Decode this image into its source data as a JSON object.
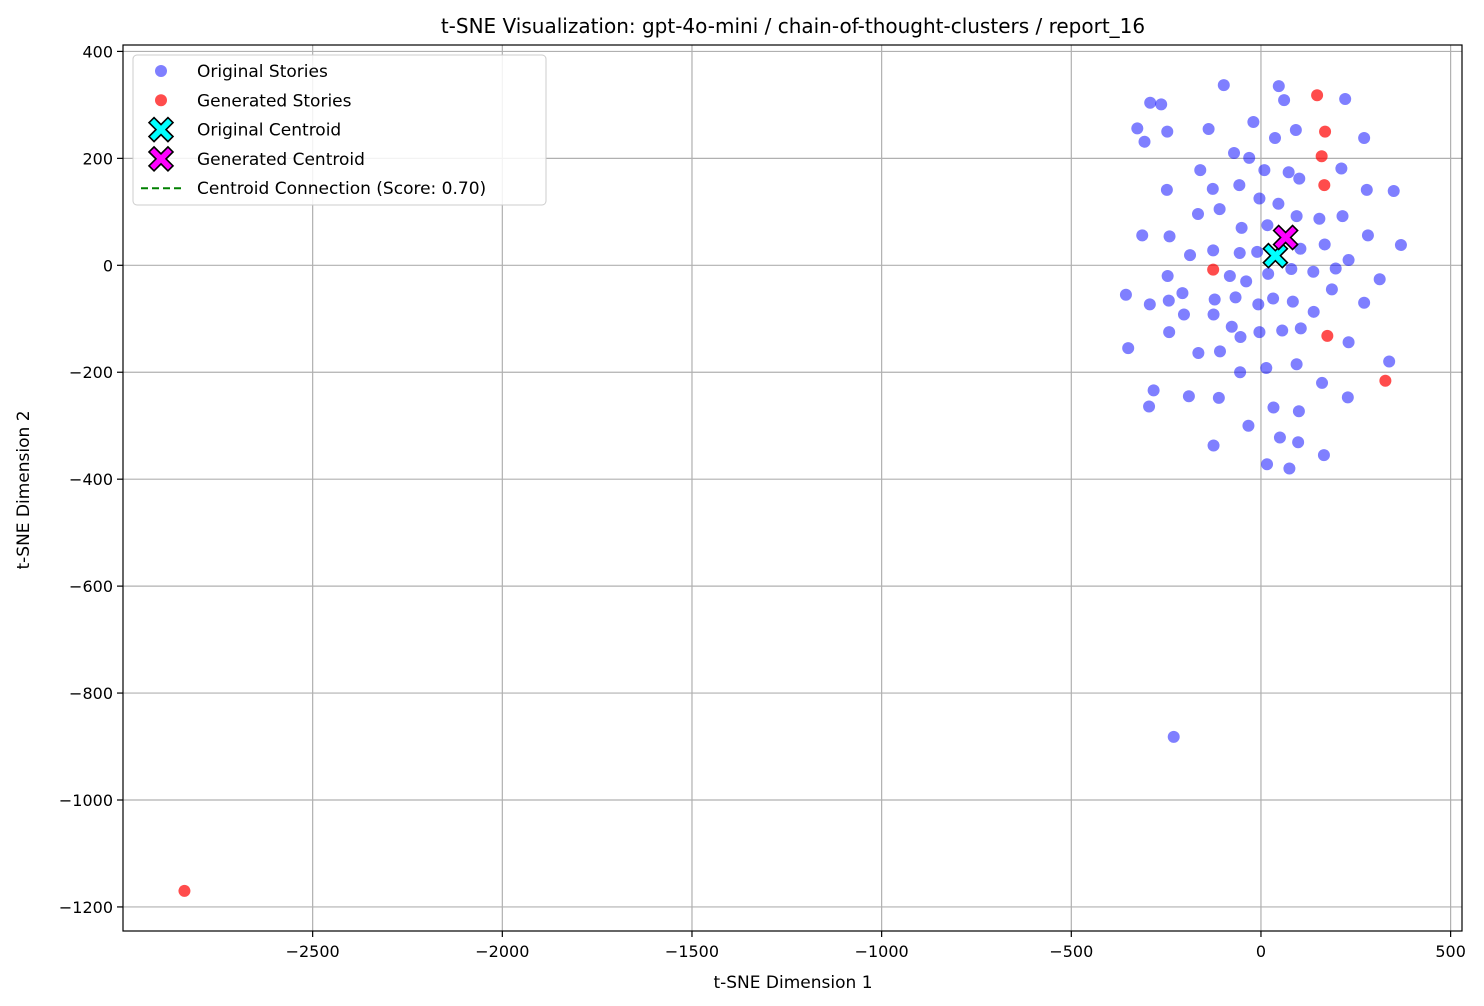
{
  "chart_data": {
    "type": "scatter",
    "title": "t-SNE Visualization: gpt-4o-mini / chain-of-thought-clusters / report_16",
    "xlabel": "t-SNE Dimension 1",
    "ylabel": "t-SNE Dimension 2",
    "xlim": [
      -3000,
      530
    ],
    "ylim": [
      -1245,
      412
    ],
    "xticks": [
      -2500,
      -2000,
      -1500,
      -1000,
      -500,
      0,
      500
    ],
    "yticks": [
      -1200,
      -1000,
      -800,
      -600,
      -400,
      -200,
      0,
      200,
      400
    ],
    "xtick_labels": [
      "−2500",
      "−2000",
      "−1500",
      "−1000",
      "−500",
      "0",
      "500"
    ],
    "ytick_labels": [
      "−1200",
      "−1000",
      "−800",
      "−600",
      "−400",
      "−200",
      "0",
      "200",
      "400"
    ],
    "grid": true,
    "legend_position": "top-left",
    "series": [
      {
        "name": "Original Stories",
        "marker": "circle",
        "color": "#0000ff",
        "points": [
          [
            -98,
            337
          ],
          [
            47,
            335
          ],
          [
            61,
            309
          ],
          [
            222,
            311
          ],
          [
            -292,
            304
          ],
          [
            -263,
            301
          ],
          [
            -20,
            268
          ],
          [
            -326,
            256
          ],
          [
            -138,
            255
          ],
          [
            -247,
            250
          ],
          [
            92,
            253
          ],
          [
            37,
            238
          ],
          [
            272,
            238
          ],
          [
            -307,
            231
          ],
          [
            -71,
            210
          ],
          [
            -31,
            201
          ],
          [
            9,
            178
          ],
          [
            73,
            174
          ],
          [
            -160,
            178
          ],
          [
            212,
            181
          ],
          [
            101,
            162
          ],
          [
            -57,
            150
          ],
          [
            -127,
            143
          ],
          [
            -248,
            141
          ],
          [
            279,
            141
          ],
          [
            350,
            139
          ],
          [
            -4,
            125
          ],
          [
            46,
            115
          ],
          [
            -109,
            105
          ],
          [
            -166,
            96
          ],
          [
            94,
            92
          ],
          [
            154,
            87
          ],
          [
            215,
            92
          ],
          [
            17,
            75
          ],
          [
            -51,
            70
          ],
          [
            -313,
            56
          ],
          [
            -241,
            54
          ],
          [
            282,
            56
          ],
          [
            168,
            39
          ],
          [
            369,
            38
          ],
          [
            -126,
            28
          ],
          [
            -10,
            25
          ],
          [
            104,
            31
          ],
          [
            -187,
            19
          ],
          [
            -56,
            23
          ],
          [
            231,
            10
          ],
          [
            80,
            -7
          ],
          [
            19,
            -16
          ],
          [
            138,
            -12
          ],
          [
            197,
            -6
          ],
          [
            -246,
            -20
          ],
          [
            -82,
            -20
          ],
          [
            -39,
            -30
          ],
          [
            313,
            -26
          ],
          [
            -207,
            -52
          ],
          [
            -356,
            -55
          ],
          [
            187,
            -45
          ],
          [
            -243,
            -66
          ],
          [
            -122,
            -64
          ],
          [
            -67,
            -60
          ],
          [
            32,
            -62
          ],
          [
            -293,
            -73
          ],
          [
            -7,
            -73
          ],
          [
            84,
            -68
          ],
          [
            272,
            -70
          ],
          [
            139,
            -87
          ],
          [
            -203,
            -92
          ],
          [
            -125,
            -92
          ],
          [
            -77,
            -115
          ],
          [
            105,
            -118
          ],
          [
            -242,
            -125
          ],
          [
            -4,
            -125
          ],
          [
            56,
            -122
          ],
          [
            -54,
            -134
          ],
          [
            231,
            -144
          ],
          [
            -350,
            -155
          ],
          [
            -165,
            -164
          ],
          [
            -108,
            -161
          ],
          [
            338,
            -180
          ],
          [
            94,
            -185
          ],
          [
            14,
            -192
          ],
          [
            -55,
            -200
          ],
          [
            161,
            -220
          ],
          [
            -283,
            -234
          ],
          [
            -190,
            -245
          ],
          [
            -111,
            -248
          ],
          [
            229,
            -247
          ],
          [
            -295,
            -264
          ],
          [
            33,
            -266
          ],
          [
            100,
            -273
          ],
          [
            -33,
            -300
          ],
          [
            50,
            -322
          ],
          [
            98,
            -331
          ],
          [
            -125,
            -337
          ],
          [
            166,
            -355
          ],
          [
            16,
            -372
          ],
          [
            75,
            -380
          ],
          [
            -230,
            -882
          ]
        ]
      },
      {
        "name": "Generated Stories",
        "marker": "circle",
        "color": "#ff0000",
        "points": [
          [
            148,
            318
          ],
          [
            169,
            250
          ],
          [
            160,
            204
          ],
          [
            167,
            150
          ],
          [
            -126,
            -8
          ],
          [
            175,
            -132
          ],
          [
            328,
            -216
          ],
          [
            -2838,
            -1170
          ]
        ]
      },
      {
        "name": "Original Centroid",
        "marker": "x",
        "color": "#00ffff",
        "points": [
          [
            38,
            18
          ]
        ]
      },
      {
        "name": "Generated Centroid",
        "marker": "x",
        "color": "#ff00ff",
        "points": [
          [
            65,
            52
          ]
        ]
      },
      {
        "name": "Centroid Connection (Score: 0.70)",
        "marker": "dashed-line",
        "color": "#008000",
        "points": [
          [
            38,
            18
          ],
          [
            65,
            52
          ]
        ]
      }
    ]
  }
}
